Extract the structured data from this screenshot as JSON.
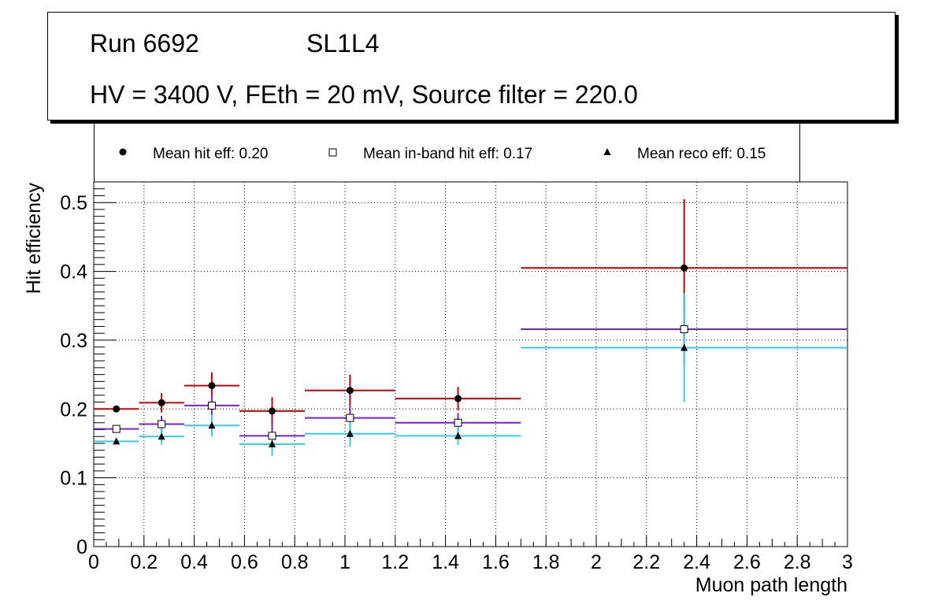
{
  "header": {
    "run": "Run 6692",
    "layer": "SL1L4",
    "conditions": "HV = 3400 V, FEth = 20 mV, Source filter = 220.0"
  },
  "legend": {
    "hit": "Mean hit  eff: 0.20",
    "inband": "Mean in-band hit eff: 0.17",
    "reco": "Mean reco eff: 0.15"
  },
  "colors": {
    "hit": "#cc0000",
    "inband": "#7722cc",
    "reco": "#33ccee"
  },
  "chart_data": {
    "type": "scatter",
    "xlabel": "Muon path length",
    "ylabel": "Hit efficiency",
    "xlim": [
      0,
      3
    ],
    "ylim": [
      0,
      0.53
    ],
    "grid": true,
    "x_ticks": [
      0,
      0.2,
      0.4,
      0.6,
      0.8,
      1,
      1.2,
      1.4,
      1.6,
      1.8,
      2,
      2.2,
      2.4,
      2.6,
      2.8,
      3
    ],
    "x_tick_labels": [
      "0",
      "0.2",
      "0.4",
      "0.6",
      "0.8",
      "1",
      "1.2",
      "1.4",
      "1.6",
      "1.8",
      "2",
      "2.2",
      "2.4",
      "2.6",
      "2.8",
      "3"
    ],
    "y_ticks": [
      0,
      0.1,
      0.2,
      0.3,
      0.4,
      0.5
    ],
    "y_tick_labels": [
      "0",
      "0.1",
      "0.2",
      "0.3",
      "0.4",
      "0.5"
    ],
    "series": [
      {
        "name": "hit",
        "marker": "circle",
        "points": [
          {
            "x": 0.09,
            "xlo": 0.0,
            "xhi": 0.18,
            "y": 0.2,
            "ylo": 0.198,
            "yhi": 0.202
          },
          {
            "x": 0.27,
            "xlo": 0.18,
            "xhi": 0.36,
            "y": 0.209,
            "ylo": 0.195,
            "yhi": 0.223
          },
          {
            "x": 0.47,
            "xlo": 0.36,
            "xhi": 0.58,
            "y": 0.234,
            "ylo": 0.216,
            "yhi": 0.253
          },
          {
            "x": 0.71,
            "xlo": 0.58,
            "xhi": 0.84,
            "y": 0.197,
            "ylo": 0.177,
            "yhi": 0.217
          },
          {
            "x": 1.02,
            "xlo": 0.84,
            "xhi": 1.2,
            "y": 0.227,
            "ylo": 0.205,
            "yhi": 0.25
          },
          {
            "x": 1.45,
            "xlo": 1.2,
            "xhi": 1.7,
            "y": 0.215,
            "ylo": 0.198,
            "yhi": 0.232
          },
          {
            "x": 2.35,
            "xlo": 1.7,
            "xhi": 3.0,
            "y": 0.405,
            "ylo": 0.306,
            "yhi": 0.505
          }
        ]
      },
      {
        "name": "inband",
        "marker": "open-square",
        "points": [
          {
            "x": 0.09,
            "xlo": 0.0,
            "xhi": 0.18,
            "y": 0.171,
            "ylo": 0.169,
            "yhi": 0.173
          },
          {
            "x": 0.27,
            "xlo": 0.18,
            "xhi": 0.36,
            "y": 0.178,
            "ylo": 0.166,
            "yhi": 0.19
          },
          {
            "x": 0.47,
            "xlo": 0.36,
            "xhi": 0.58,
            "y": 0.205,
            "ylo": 0.189,
            "yhi": 0.221
          },
          {
            "x": 0.71,
            "xlo": 0.58,
            "xhi": 0.84,
            "y": 0.161,
            "ylo": 0.143,
            "yhi": 0.179
          },
          {
            "x": 1.02,
            "xlo": 0.84,
            "xhi": 1.2,
            "y": 0.187,
            "ylo": 0.168,
            "yhi": 0.206
          },
          {
            "x": 1.45,
            "xlo": 1.2,
            "xhi": 1.7,
            "y": 0.18,
            "ylo": 0.167,
            "yhi": 0.194
          },
          {
            "x": 2.35,
            "xlo": 1.7,
            "xhi": 3.0,
            "y": 0.316,
            "ylo": 0.266,
            "yhi": 0.366
          }
        ]
      },
      {
        "name": "reco",
        "marker": "triangle",
        "points": [
          {
            "x": 0.09,
            "xlo": 0.0,
            "xhi": 0.18,
            "y": 0.153,
            "ylo": 0.151,
            "yhi": 0.155
          },
          {
            "x": 0.27,
            "xlo": 0.18,
            "xhi": 0.36,
            "y": 0.16,
            "ylo": 0.148,
            "yhi": 0.172
          },
          {
            "x": 0.47,
            "xlo": 0.36,
            "xhi": 0.58,
            "y": 0.176,
            "ylo": 0.16,
            "yhi": 0.192
          },
          {
            "x": 0.71,
            "xlo": 0.58,
            "xhi": 0.84,
            "y": 0.149,
            "ylo": 0.132,
            "yhi": 0.166
          },
          {
            "x": 1.02,
            "xlo": 0.84,
            "xhi": 1.2,
            "y": 0.164,
            "ylo": 0.145,
            "yhi": 0.183
          },
          {
            "x": 1.45,
            "xlo": 1.2,
            "xhi": 1.7,
            "y": 0.161,
            "ylo": 0.148,
            "yhi": 0.174
          },
          {
            "x": 2.35,
            "xlo": 1.7,
            "xhi": 3.0,
            "y": 0.289,
            "ylo": 0.21,
            "yhi": 0.368
          }
        ]
      }
    ]
  }
}
